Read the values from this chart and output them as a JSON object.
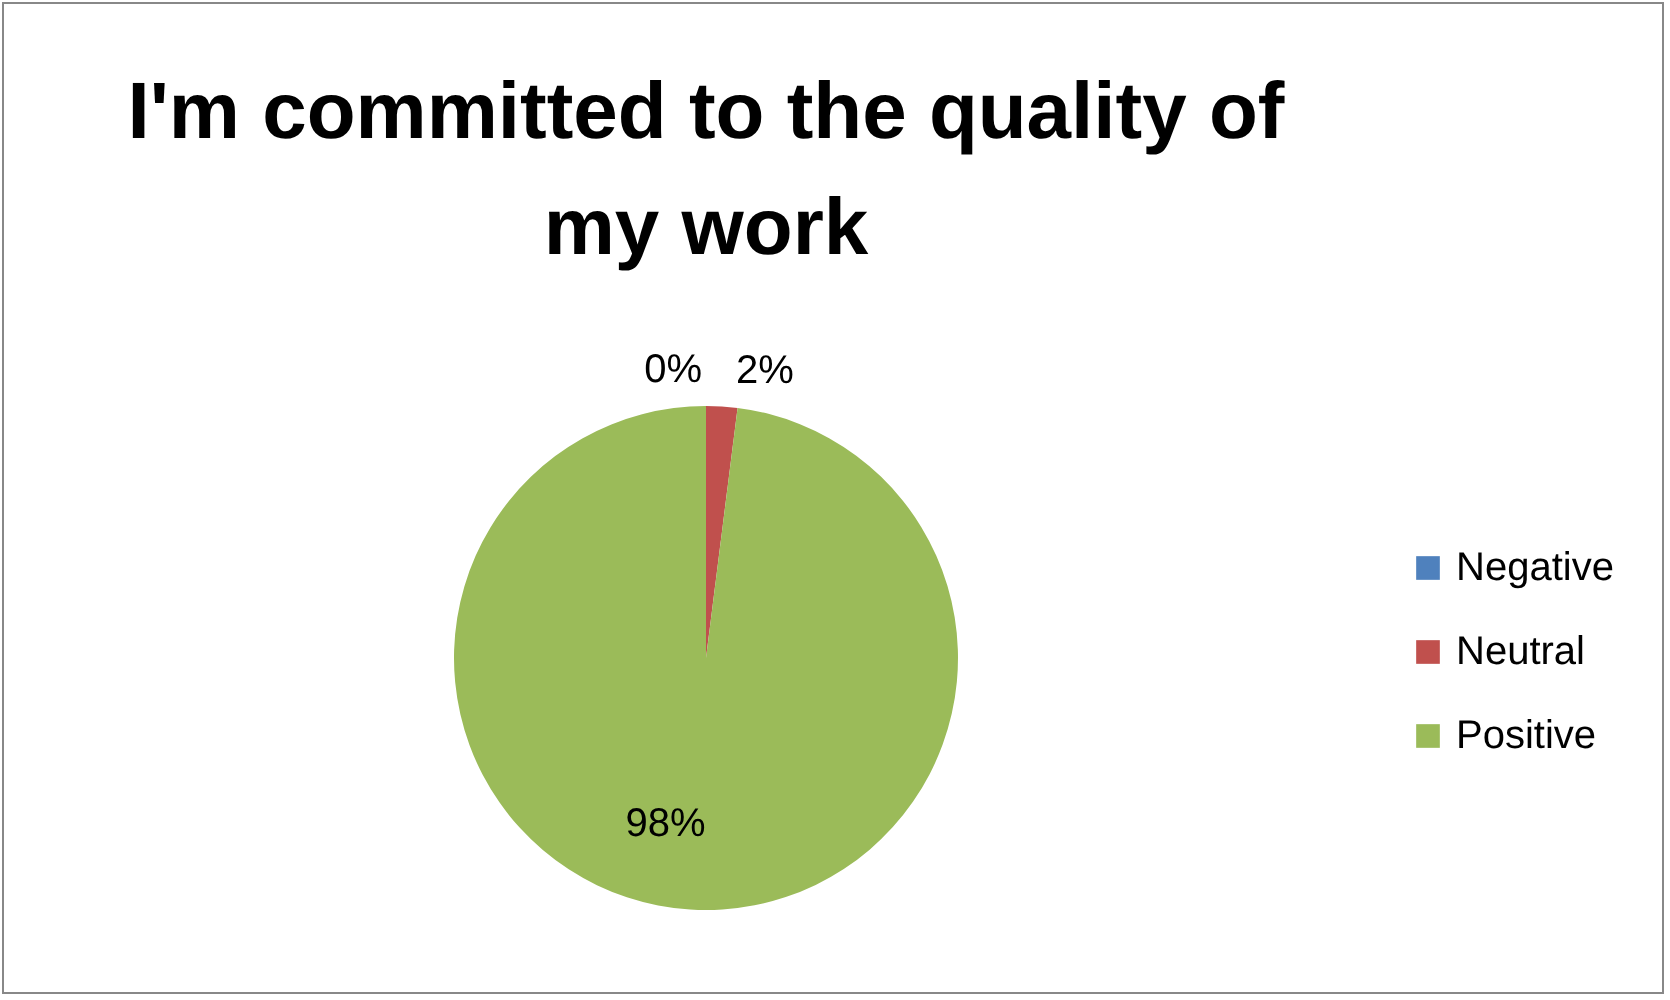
{
  "chart_data": {
    "type": "pie",
    "title": "I'm committed to the quality of my work",
    "categories": [
      "Negative",
      "Neutral",
      "Positive"
    ],
    "values": [
      0,
      2,
      98
    ],
    "colors": [
      "#4f81bd",
      "#c0504d",
      "#9bbb59"
    ],
    "value_labels": [
      "0%",
      "2%",
      "98%"
    ],
    "legend": "right"
  }
}
